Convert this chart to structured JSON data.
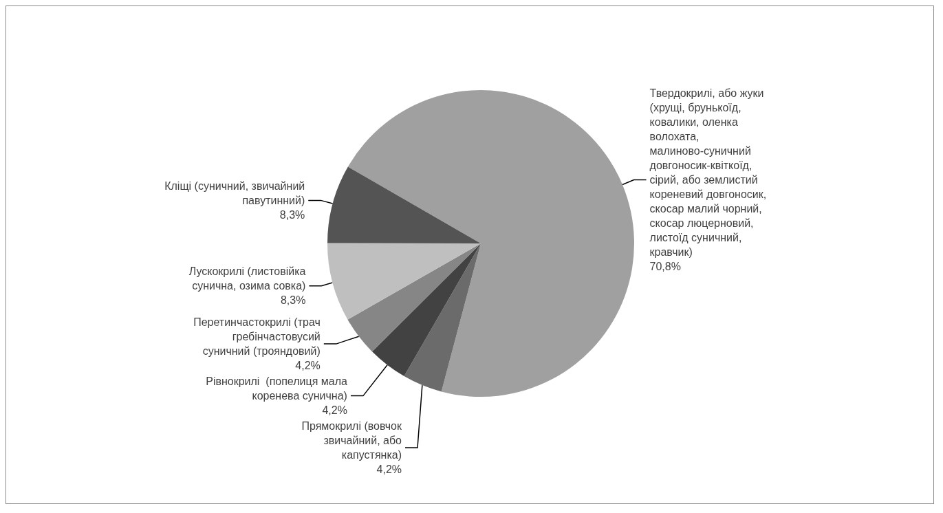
{
  "chart_data": {
    "type": "pie",
    "categories": [
      "Твердокрилі, або жуки (хрущі, брунькоїд, ковалики, оленка волохата, малиново-суничний довгоносик-квіткоїд, сірий, або землистий кореневий довгоносик, скосар малий чорний, скосар люцерновий, листоїд суничний, кравчик)",
      "Прямокрилі (вовчок звичайний, або капустянка)",
      "Рівнокрилі  (попелиця мала коренева сунична)",
      "Перетинчастокрилі (трач гребінчастовусий суничний (трояндовий)",
      "Лускокрилі (листовійка сунична, озима совка)",
      "Кліщі (суничний, звичайний павутинний)"
    ],
    "values": [
      70.8,
      4.2,
      4.2,
      4.2,
      8.3,
      8.3
    ],
    "value_labels": [
      "70,8%",
      "4,2%",
      "4,2%",
      "4,2%",
      "8,3%",
      "8,3%"
    ],
    "colors": [
      "#a0a0a0",
      "#6b6b6b",
      "#424242",
      "#868686",
      "#bfbfbf",
      "#545454"
    ],
    "legend": false
  }
}
